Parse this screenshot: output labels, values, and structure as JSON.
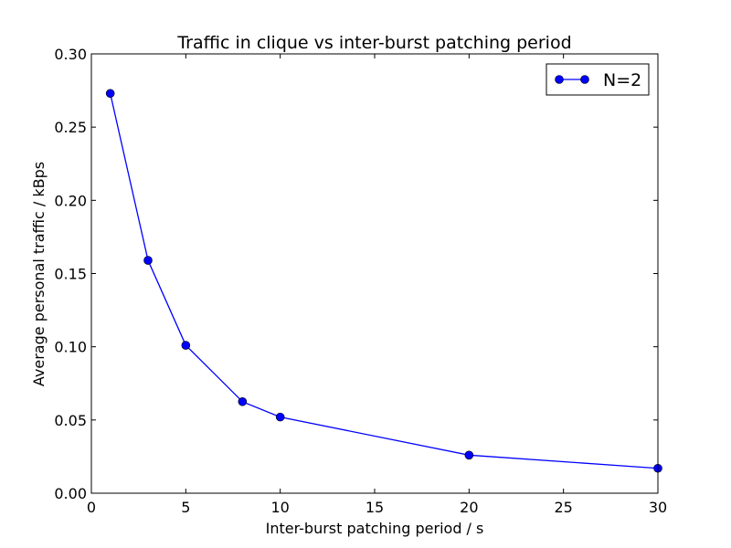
{
  "chart_data": {
    "type": "line",
    "title": "Traffic in clique vs inter-burst patching period",
    "xlabel": "Inter-burst patching period / s",
    "ylabel": "Average personal traffic  / kBps",
    "xlim": [
      0,
      30
    ],
    "ylim": [
      0,
      0.3
    ],
    "xticks": [
      "0",
      "5",
      "10",
      "15",
      "20",
      "25",
      "30"
    ],
    "yticks": [
      "0.00",
      "0.05",
      "0.10",
      "0.15",
      "0.20",
      "0.25",
      "0.30"
    ],
    "grid": false,
    "legend_position": "top-right",
    "series": [
      {
        "name": "N=2",
        "color": "#0000ff",
        "marker": "circle",
        "points": [
          {
            "x": 1,
            "y": 0.273
          },
          {
            "x": 3,
            "y": 0.159
          },
          {
            "x": 5,
            "y": 0.101
          },
          {
            "x": 8,
            "y": 0.0625
          },
          {
            "x": 10,
            "y": 0.052
          },
          {
            "x": 20,
            "y": 0.026
          },
          {
            "x": 30,
            "y": 0.017
          }
        ]
      }
    ]
  }
}
